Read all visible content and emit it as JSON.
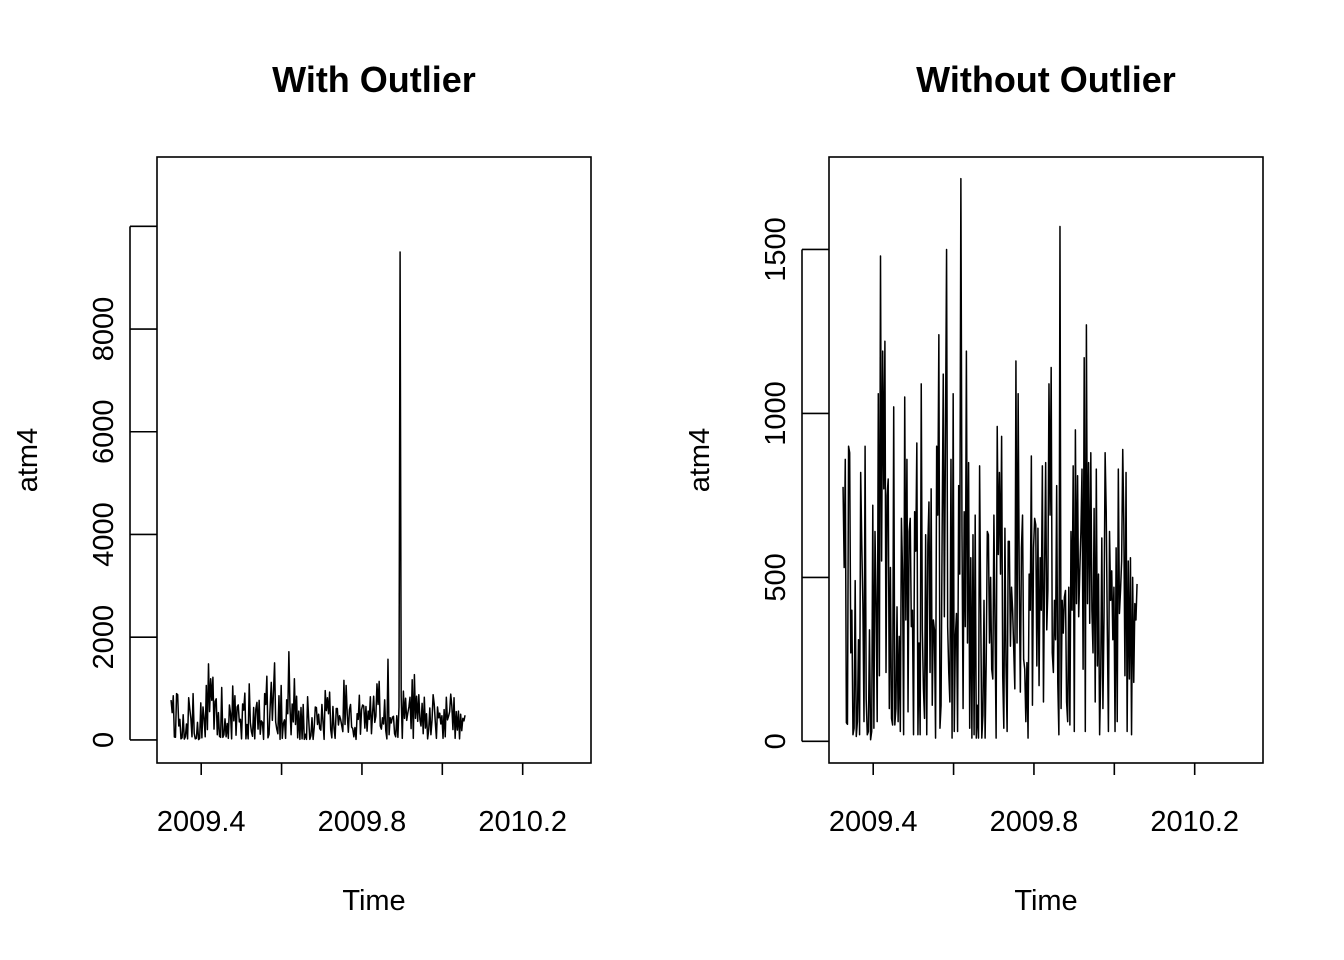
{
  "chart_data": [
    {
      "type": "line",
      "title": "With Outlier",
      "xlabel": "Time",
      "ylabel": "atm4",
      "xlim": [
        2009.29,
        2010.37
      ],
      "ylim": [
        -450,
        11350
      ],
      "xticks": [
        2009.4,
        2009.6,
        2009.8,
        2010.0,
        2010.2
      ],
      "xtick_labels": [
        "2009.4",
        "",
        "2009.8",
        "",
        "2010.2"
      ],
      "yticks": [
        0,
        2000,
        4000,
        6000,
        8000,
        10000
      ],
      "ytick_labels": [
        "0",
        "2000",
        "4000",
        "6000",
        "8000",
        ""
      ],
      "grid": false,
      "series": [
        {
          "x_start": 2009.325,
          "x_step": 0.00274,
          "values": [
            776,
            530,
            860,
            57,
            52,
            900,
            880,
            270,
            400,
            20,
            40,
            490,
            15,
            60,
            310,
            20,
            820,
            600,
            420,
            60,
            900,
            130,
            20,
            30,
            340,
            5,
            30,
            720,
            40,
            640,
            420,
            60,
            1060,
            200,
            1480,
            550,
            1190,
            770,
            1220,
            210,
            750,
            800,
            100,
            530,
            70,
            50,
            1020,
            50,
            100,
            410,
            60,
            320,
            30,
            680,
            520,
            20,
            1050,
            370,
            860,
            90,
            640,
            680,
            350,
            400,
            20,
            700,
            580,
            910,
            20,
            300,
            20,
            1090,
            340,
            160,
            70,
            630,
            20,
            600,
            730,
            210,
            770,
            110,
            370,
            340,
            10,
            900,
            690,
            1240,
            40,
            110,
            650,
            1120,
            380,
            920,
            1500,
            350,
            210,
            120,
            860,
            10,
            1060,
            30,
            320,
            390,
            30,
            780,
            510,
            1716,
            640,
            100,
            700,
            350,
            1190,
            300,
            850,
            40,
            560,
            10,
            630,
            20,
            690,
            10,
            110,
            10,
            840,
            400,
            10,
            80,
            430,
            10,
            240,
            640,
            630,
            300,
            500,
            220,
            190,
            690,
            350,
            10,
            960,
            570,
            820,
            510,
            930,
            200,
            40,
            650,
            230,
            30,
            610,
            610,
            290,
            470,
            400,
            280,
            160,
            1160,
            300,
            1060,
            500,
            150,
            590,
            690,
            250,
            220,
            60,
            240,
            10,
            510,
            400,
            870,
            110,
            590,
            680,
            660,
            230,
            650,
            170,
            560,
            400,
            840,
            120,
            520,
            850,
            340,
            460,
            1090,
            690,
            1140,
            270,
            210,
            430,
            310,
            780,
            180,
            20,
            1570,
            100,
            430,
            330,
            440,
            460,
            120,
            60,
            470,
            50,
            640,
            9500,
            840,
            30,
            950,
            420,
            810,
            380,
            520,
            640,
            830,
            220,
            1170,
            30,
            1270,
            420,
            850,
            360,
            880,
            400,
            270,
            710,
            120,
            830,
            230,
            510,
            20,
            200,
            620,
            100,
            380,
            880,
            700,
            340,
            30,
            640,
            430,
            520,
            310,
            470,
            30,
            590,
            60,
            830,
            390,
            460,
            550,
            890,
            660,
            200,
            820,
            30,
            550,
            190,
            560,
            20,
            500,
            180,
            420,
            370,
            480
          ]
        }
      ]
    },
    {
      "type": "line",
      "title": "Without Outlier",
      "xlabel": "Time",
      "ylabel": "atm4",
      "xlim": [
        2009.29,
        2010.37
      ],
      "ylim": [
        -66,
        1782
      ],
      "xticks": [
        2009.4,
        2009.6,
        2009.8,
        2010.0,
        2010.2
      ],
      "xtick_labels": [
        "2009.4",
        "",
        "2009.8",
        "",
        "2010.2"
      ],
      "yticks": [
        0,
        500,
        1000,
        1500
      ],
      "ytick_labels": [
        "0",
        "500",
        "1000",
        "1500"
      ],
      "grid": false,
      "series": [
        {
          "x_start": 2009.325,
          "x_step": 0.00274,
          "values": [
            776,
            530,
            860,
            57,
            52,
            900,
            880,
            270,
            400,
            20,
            40,
            490,
            15,
            60,
            310,
            20,
            820,
            600,
            420,
            60,
            900,
            130,
            20,
            30,
            340,
            5,
            30,
            720,
            40,
            640,
            420,
            60,
            1060,
            200,
            1480,
            550,
            1190,
            770,
            1220,
            210,
            750,
            800,
            100,
            530,
            70,
            50,
            1020,
            50,
            100,
            410,
            60,
            320,
            30,
            680,
            520,
            20,
            1050,
            370,
            860,
            90,
            640,
            680,
            350,
            400,
            20,
            700,
            580,
            910,
            20,
            300,
            20,
            1090,
            340,
            160,
            70,
            630,
            20,
            600,
            730,
            210,
            770,
            110,
            370,
            340,
            10,
            900,
            690,
            1240,
            40,
            110,
            650,
            1120,
            380,
            920,
            1500,
            350,
            210,
            120,
            860,
            10,
            1060,
            30,
            320,
            390,
            30,
            780,
            510,
            1716,
            640,
            100,
            700,
            350,
            1190,
            300,
            850,
            40,
            560,
            10,
            630,
            20,
            690,
            10,
            110,
            10,
            840,
            400,
            10,
            80,
            430,
            10,
            240,
            640,
            630,
            300,
            500,
            220,
            190,
            690,
            350,
            10,
            960,
            570,
            820,
            510,
            930,
            200,
            40,
            650,
            230,
            30,
            610,
            610,
            290,
            470,
            400,
            280,
            160,
            1160,
            300,
            1060,
            500,
            150,
            590,
            690,
            250,
            220,
            60,
            240,
            10,
            510,
            400,
            870,
            110,
            590,
            680,
            660,
            230,
            650,
            170,
            560,
            400,
            840,
            120,
            520,
            850,
            340,
            460,
            1090,
            690,
            1140,
            270,
            210,
            430,
            310,
            780,
            180,
            20,
            1570,
            100,
            430,
            330,
            440,
            460,
            120,
            60,
            470,
            50,
            640,
            400,
            840,
            30,
            950,
            420,
            810,
            380,
            520,
            640,
            830,
            220,
            1170,
            30,
            1270,
            420,
            850,
            360,
            880,
            400,
            270,
            710,
            120,
            830,
            230,
            510,
            20,
            200,
            620,
            100,
            380,
            880,
            700,
            340,
            30,
            640,
            430,
            520,
            310,
            470,
            30,
            590,
            60,
            830,
            390,
            460,
            550,
            890,
            660,
            200,
            820,
            30,
            550,
            190,
            560,
            20,
            500,
            180,
            420,
            370,
            480
          ]
        }
      ]
    }
  ]
}
